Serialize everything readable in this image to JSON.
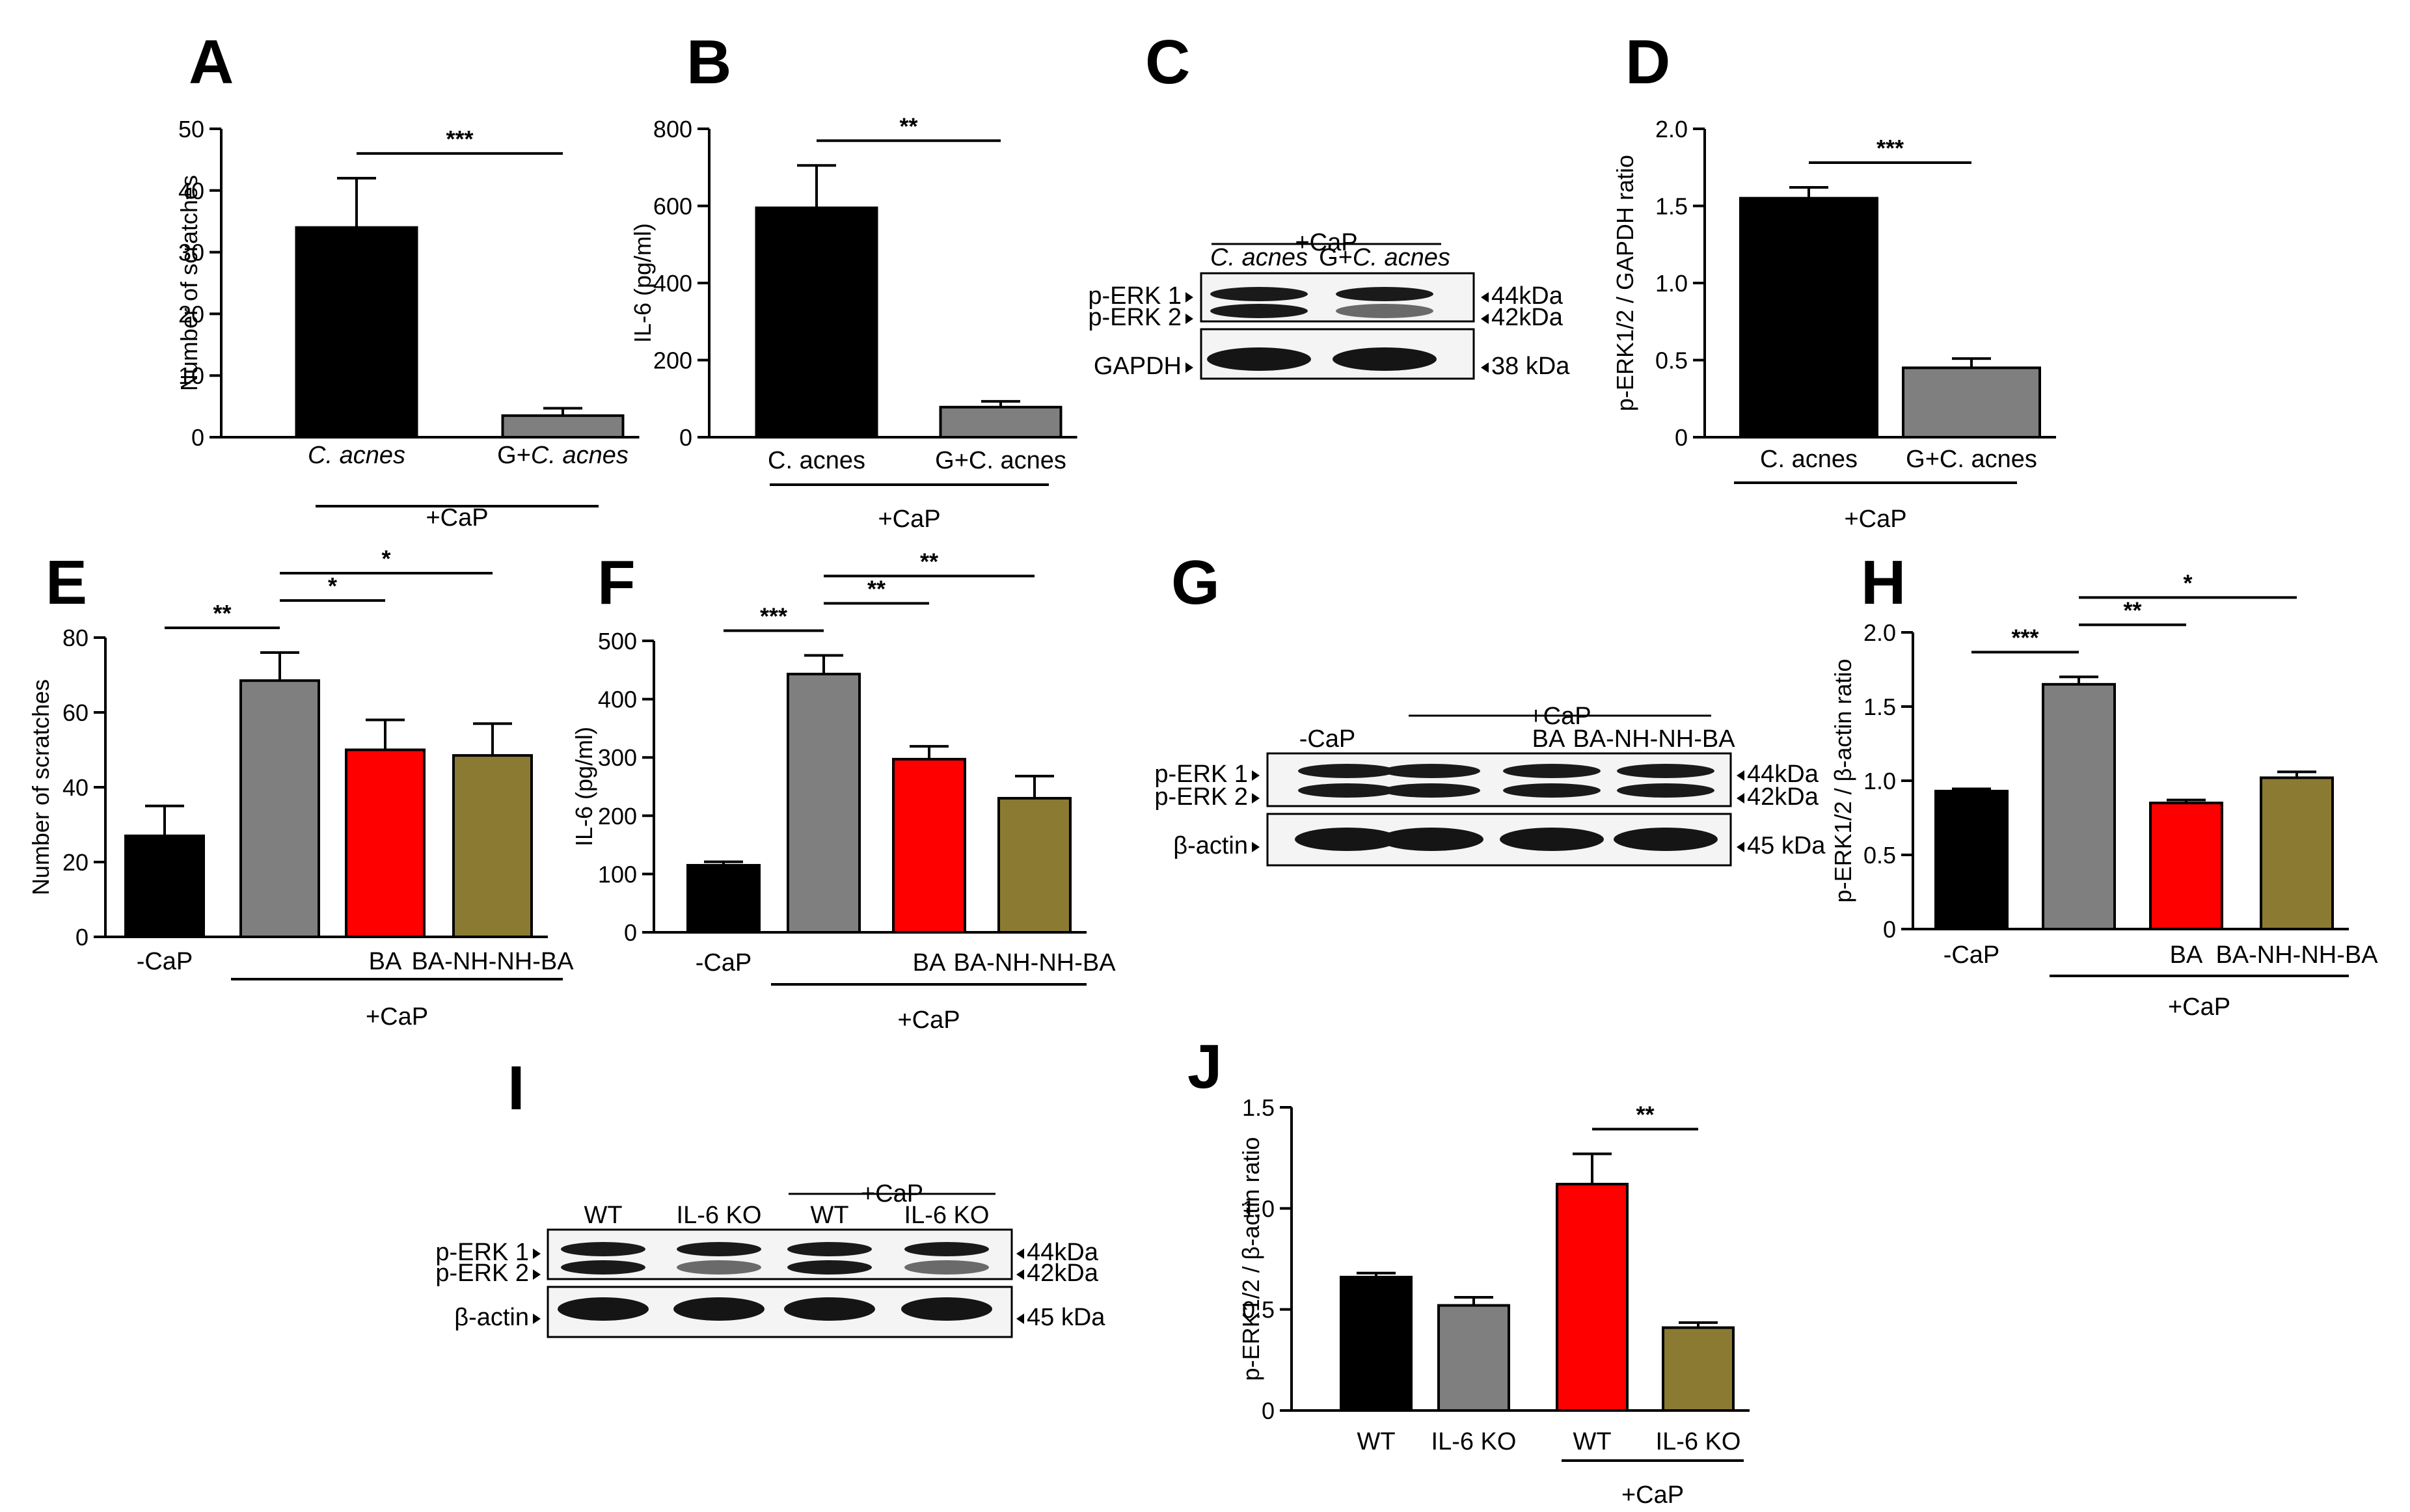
{
  "chart_data": [
    {
      "panel": "A",
      "type": "bar",
      "categories": [
        "C. acnes",
        "G+C. acnes"
      ],
      "italic": [
        "C. acnes",
        "C. acnes"
      ],
      "values": [
        34,
        3.5
      ],
      "errors": [
        8,
        1.2
      ],
      "colors": [
        "#000000",
        "#7f7f7f"
      ],
      "ylabel": "Number of scratches",
      "ylim": [
        0,
        50
      ],
      "yticks": [
        0,
        10,
        20,
        30,
        40,
        50
      ],
      "brackets": [
        {
          "from": 0,
          "to": 1,
          "label": "***"
        }
      ],
      "groups": [
        {
          "from": 0,
          "to": 1,
          "label": "+CaP"
        }
      ]
    },
    {
      "panel": "B",
      "type": "bar",
      "categories": [
        "C. acnes",
        "G+C. acnes"
      ],
      "values": [
        595,
        78
      ],
      "errors": [
        110,
        15
      ],
      "colors": [
        "#000000",
        "#7f7f7f"
      ],
      "ylabel": "IL-6 (pg/ml)",
      "ylim": [
        0,
        800
      ],
      "yticks": [
        0,
        200,
        400,
        600,
        800
      ],
      "brackets": [
        {
          "from": 0,
          "to": 1,
          "label": "**"
        }
      ],
      "groups": [
        {
          "from": 0,
          "to": 1,
          "label": "+CaP"
        }
      ]
    },
    {
      "panel": "D",
      "type": "bar",
      "categories": [
        "C. acnes",
        "G+C. acnes"
      ],
      "values": [
        1.55,
        0.45
      ],
      "errors": [
        0.07,
        0.06
      ],
      "colors": [
        "#000000",
        "#7f7f7f"
      ],
      "ylabel": "p-ERK1/2 / GAPDH ratio",
      "ylim": [
        0,
        2.0
      ],
      "yticks": [
        "0",
        "0.5",
        "1.0",
        "1.5",
        "2.0"
      ],
      "brackets": [
        {
          "from": 0,
          "to": 1,
          "label": "***"
        }
      ],
      "groups": [
        {
          "from": 0,
          "to": 1,
          "label": "+CaP"
        }
      ]
    },
    {
      "panel": "E",
      "type": "bar",
      "categories": [
        "-CaP",
        "",
        "BA",
        "BA-NH-NH-BA"
      ],
      "values": [
        27,
        68.5,
        50,
        48.5
      ],
      "errors": [
        8,
        7.5,
        8,
        8.5
      ],
      "colors": [
        "#000000",
        "#7f7f7f",
        "#ff0000",
        "#8b7a32"
      ],
      "ylabel": "Number of scratches",
      "ylim": [
        0,
        80
      ],
      "yticks": [
        0,
        20,
        40,
        60,
        80
      ],
      "brackets": [
        {
          "from": 0,
          "to": 1,
          "label": "**"
        },
        {
          "from": 1,
          "to": 2,
          "label": "*"
        },
        {
          "from": 1,
          "to": 3,
          "label": "*"
        }
      ],
      "groups": [
        {
          "from": 1,
          "to": 3,
          "label": "+CaP"
        }
      ]
    },
    {
      "panel": "F",
      "type": "bar",
      "categories": [
        "-CaP",
        "",
        "BA",
        "BA-NH-NH-BA"
      ],
      "values": [
        115,
        443,
        297,
        230
      ],
      "errors": [
        6,
        32,
        22,
        38
      ],
      "colors": [
        "#000000",
        "#7f7f7f",
        "#ff0000",
        "#8b7a32"
      ],
      "ylabel": "IL-6 (pg/ml)",
      "ylim": [
        0,
        500
      ],
      "yticks": [
        0,
        100,
        200,
        300,
        400,
        500
      ],
      "brackets": [
        {
          "from": 0,
          "to": 1,
          "label": "***"
        },
        {
          "from": 1,
          "to": 2,
          "label": "**"
        },
        {
          "from": 1,
          "to": 3,
          "label": "**"
        }
      ],
      "groups": [
        {
          "from": 1,
          "to": 3,
          "label": "+CaP"
        }
      ]
    },
    {
      "panel": "H",
      "type": "bar",
      "categories": [
        "-CaP",
        "",
        "BA",
        "BA-NH-NH-BA"
      ],
      "values": [
        0.93,
        1.65,
        0.85,
        1.02
      ],
      "errors": [
        0.015,
        0.05,
        0.02,
        0.04
      ],
      "colors": [
        "#000000",
        "#7f7f7f",
        "#ff0000",
        "#8b7a32"
      ],
      "ylabel": "p-ERK1/2 / β-actin ratio",
      "ylim": [
        0,
        2.0
      ],
      "yticks": [
        "0",
        "0.5",
        "1.0",
        "1.5",
        "2.0"
      ],
      "brackets": [
        {
          "from": 0,
          "to": 1,
          "label": "***"
        },
        {
          "from": 1,
          "to": 2,
          "label": "**"
        },
        {
          "from": 1,
          "to": 3,
          "label": "*"
        }
      ],
      "groups": [
        {
          "from": 1,
          "to": 3,
          "label": "+CaP"
        }
      ]
    },
    {
      "panel": "J",
      "type": "bar",
      "categories": [
        "WT",
        "IL-6 KO",
        "WT",
        "IL-6 KO"
      ],
      "values": [
        0.66,
        0.52,
        1.12,
        0.41
      ],
      "errors": [
        0.02,
        0.04,
        0.15,
        0.025
      ],
      "colors": [
        "#000000",
        "#7f7f7f",
        "#ff0000",
        "#8b7a32"
      ],
      "ylabel": "p-ERK1/2 / β-actin ratio",
      "ylim": [
        0,
        1.5
      ],
      "yticks": [
        "0",
        "0.5",
        "1.0",
        "1.5"
      ],
      "brackets": [
        {
          "from": 2,
          "to": 3,
          "label": "**"
        }
      ],
      "groups": [
        {
          "from": 2,
          "to": 3,
          "label": "+CaP"
        }
      ]
    }
  ],
  "blots": [
    {
      "panel": "C",
      "group_label": "+CaP",
      "lanes": [
        "C. acnes",
        "G+C. acnes"
      ],
      "italic": [
        "C. acnes",
        "C. acnes"
      ],
      "rows": [
        {
          "left": [
            "p-ERK 1",
            "p-ERK 2"
          ],
          "right": [
            "44kDa",
            "42kDa"
          ]
        },
        {
          "left": [
            "GAPDH"
          ],
          "right": [
            "38 kDa"
          ]
        }
      ]
    },
    {
      "panel": "G",
      "group_label": "+CaP",
      "lanes": [
        "-CaP",
        "",
        "BA",
        "BA-NH-NH-BA"
      ],
      "rows": [
        {
          "left": [
            "p-ERK 1",
            "p-ERK 2"
          ],
          "right": [
            "44kDa",
            "42kDa"
          ]
        },
        {
          "left": [
            "β-actin"
          ],
          "right": [
            "45 kDa"
          ]
        }
      ]
    },
    {
      "panel": "I",
      "group_label": "+CaP",
      "lanes": [
        "WT",
        "IL-6 KO",
        "WT",
        "IL-6 KO"
      ],
      "rows": [
        {
          "left": [
            "p-ERK 1",
            "p-ERK 2"
          ],
          "right": [
            "44kDa",
            "42kDa"
          ]
        },
        {
          "left": [
            "β-actin"
          ],
          "right": [
            "45 kDa"
          ]
        }
      ]
    }
  ]
}
